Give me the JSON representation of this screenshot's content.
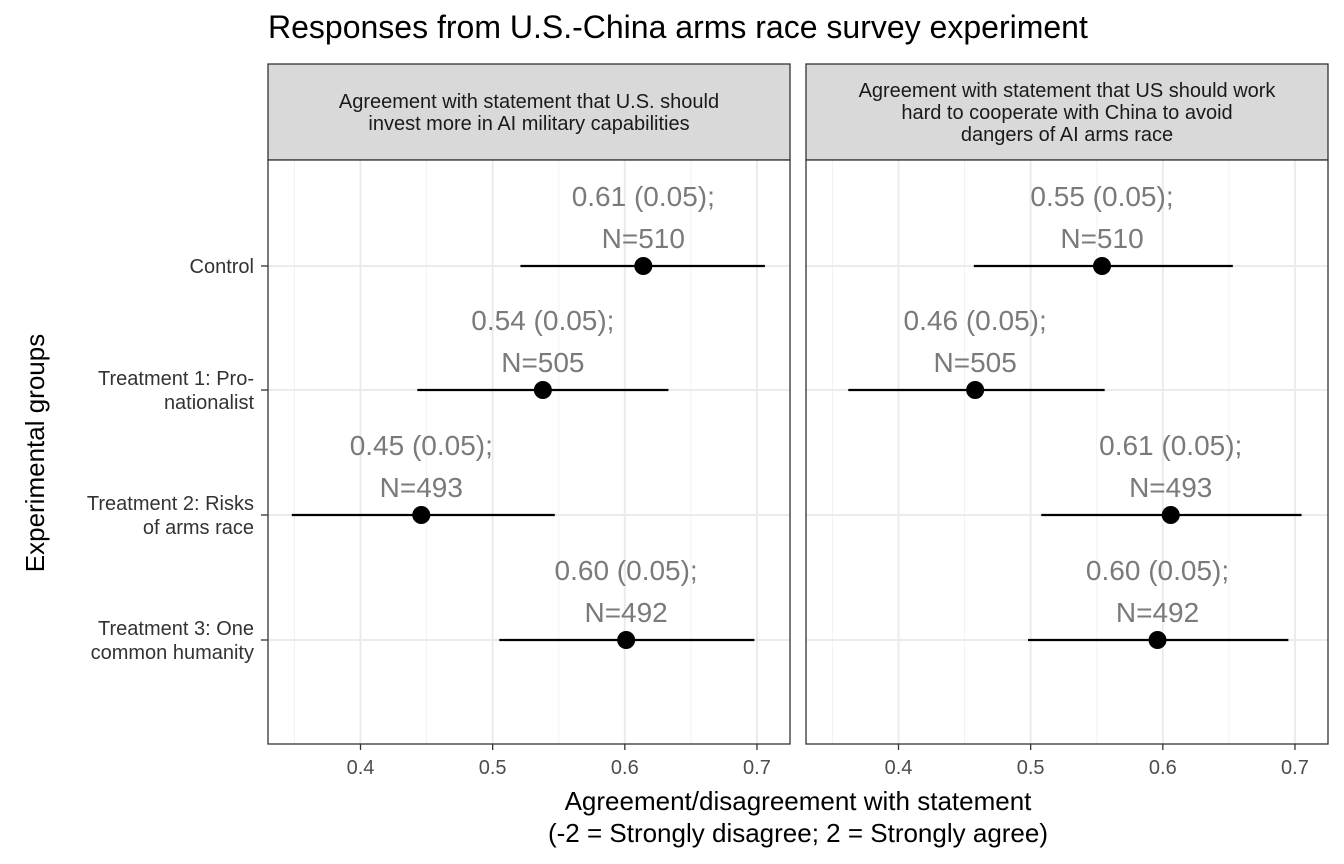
{
  "chart_data": {
    "type": "scatter",
    "title": "Responses from U.S.-China arms race survey experiment",
    "xlabel": [
      "Agreement/disagreement with statement",
      "(-2 = Strongly disagree; 2 = Strongly agree)"
    ],
    "ylabel": "Experimental groups",
    "xlim": [
      0.33,
      0.725
    ],
    "xticks": [
      0.4,
      0.5,
      0.6,
      0.7
    ],
    "xtick_labels": [
      "0.4",
      "0.5",
      "0.6",
      "0.7"
    ],
    "grid": true,
    "categories": [
      [
        "Control"
      ],
      [
        "Treatment 1: Pro-",
        "nationalist"
      ],
      [
        "Treatment 2: Risks",
        "of arms race"
      ],
      [
        "Treatment 3: One",
        "common humanity"
      ]
    ],
    "panels": [
      {
        "strip": [
          "Agreement with statement that U.S. should",
          "invest more in AI military capabilities"
        ],
        "points": [
          {
            "mean": 0.614,
            "low": 0.521,
            "high": 0.706,
            "label1": "0.61 (0.05);",
            "label2": "N=510"
          },
          {
            "mean": 0.538,
            "low": 0.443,
            "high": 0.633,
            "label1": "0.54 (0.05);",
            "label2": "N=505"
          },
          {
            "mean": 0.446,
            "low": 0.348,
            "high": 0.547,
            "label1": "0.45 (0.05);",
            "label2": "N=493"
          },
          {
            "mean": 0.601,
            "low": 0.505,
            "high": 0.698,
            "label1": "0.60 (0.05);",
            "label2": "N=492"
          }
        ]
      },
      {
        "strip": [
          "Agreement with statement that US should work",
          "hard to cooperate with China to avoid",
          "dangers of AI arms race"
        ],
        "points": [
          {
            "mean": 0.554,
            "low": 0.457,
            "high": 0.653,
            "label1": "0.55 (0.05);",
            "label2": "N=510"
          },
          {
            "mean": 0.458,
            "low": 0.362,
            "high": 0.556,
            "label1": "0.46 (0.05);",
            "label2": "N=505"
          },
          {
            "mean": 0.606,
            "low": 0.508,
            "high": 0.705,
            "label1": "0.61 (0.05);",
            "label2": "N=493"
          },
          {
            "mean": 0.596,
            "low": 0.498,
            "high": 0.695,
            "label1": "0.60 (0.05);",
            "label2": "N=492"
          }
        ]
      }
    ]
  }
}
